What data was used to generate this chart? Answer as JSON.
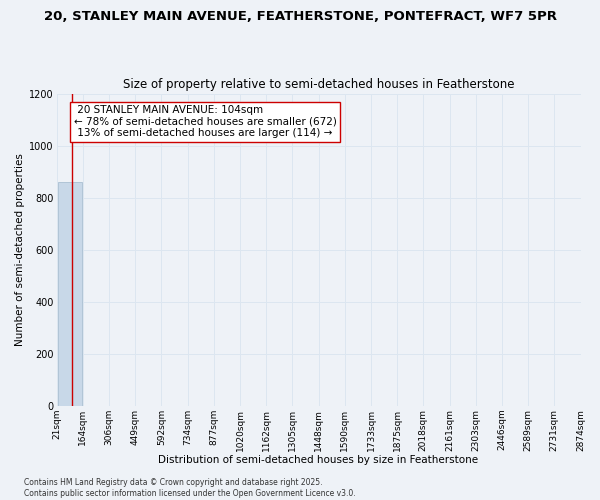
{
  "title_line1": "20, STANLEY MAIN AVENUE, FEATHERSTONE, PONTEFRACT, WF7 5PR",
  "title_line2": "Size of property relative to semi-detached houses in Featherstone",
  "xlabel": "Distribution of semi-detached houses by size in Featherstone",
  "ylabel": "Number of semi-detached properties",
  "bin_edges": [
    21,
    164,
    306,
    449,
    592,
    734,
    877,
    1020,
    1162,
    1305,
    1448,
    1590,
    1733,
    1875,
    2018,
    2161,
    2303,
    2446,
    2589,
    2731,
    2874
  ],
  "bar_heights": [
    860,
    0,
    0,
    0,
    0,
    0,
    0,
    0,
    0,
    0,
    0,
    0,
    0,
    0,
    0,
    0,
    0,
    0,
    0,
    0
  ],
  "bar_color": "#c8d8e8",
  "bar_edgecolor": "#a0b8cc",
  "grid_color": "#dce6f0",
  "background_color": "#eef2f7",
  "property_size": 104,
  "property_label": "20 STANLEY MAIN AVENUE: 104sqm",
  "pct_smaller": 78,
  "count_smaller": 672,
  "pct_larger": 13,
  "count_larger": 114,
  "vline_color": "#cc0000",
  "annotation_box_edgecolor": "#cc0000",
  "annotation_fontsize": 7.5,
  "title_fontsize1": 9.5,
  "title_fontsize2": 8.5,
  "ylabel_fontsize": 7.5,
  "xlabel_fontsize": 7.5,
  "tick_fontsize": 6.5,
  "footer_text": "Contains HM Land Registry data © Crown copyright and database right 2025.\nContains public sector information licensed under the Open Government Licence v3.0.",
  "footer_fontsize": 5.5,
  "ylim": [
    0,
    1200
  ],
  "yticks": [
    0,
    200,
    400,
    600,
    800,
    1000,
    1200
  ]
}
